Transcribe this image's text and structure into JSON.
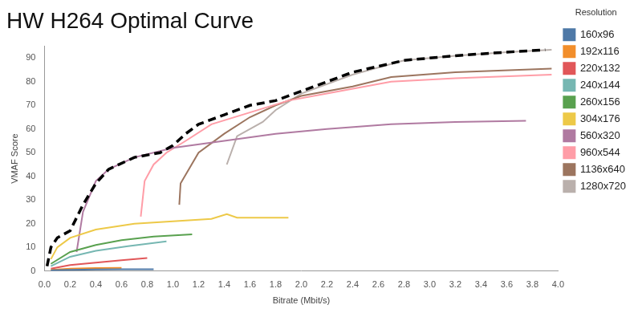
{
  "chart_data": {
    "type": "line",
    "title": "HW H264 Optimal Curve",
    "x_label": "Bitrate (Mbit/s)",
    "y_label": "VMAF Score",
    "legend": "right",
    "legend_title": "Resolution",
    "grid": false,
    "xlim": [
      0,
      4.0
    ],
    "xticks": [
      {
        "value": 0,
        "label": "0.0"
      },
      0.2,
      0.4,
      0.6,
      0.8,
      {
        "value": 1,
        "label": "1.0"
      },
      1.2,
      1.4,
      1.6,
      1.8,
      {
        "value": 2,
        "label": "2.0"
      },
      2.2,
      2.4,
      2.6,
      2.8,
      {
        "value": 3,
        "label": "3.0"
      },
      3.2,
      3.4,
      3.6,
      3.8,
      {
        "value": 4,
        "label": "4.0"
      }
    ],
    "ylim": [
      0,
      95
    ],
    "yticks": [
      0,
      10,
      20,
      30,
      40,
      50,
      60,
      70,
      80,
      90
    ],
    "series": [
      {
        "color": "#000000",
        "line_style": "dashed",
        "x": [
          0.02,
          0.05,
          0.1,
          0.2,
          0.3,
          0.4,
          0.5,
          0.7,
          0.9,
          1.0,
          1.1,
          1.2,
          1.4,
          1.6,
          1.8,
          2.0,
          2.4,
          2.8,
          3.2,
          3.6,
          3.9
        ],
        "values": [
          2,
          10,
          14,
          17,
          28,
          37,
          43,
          48,
          50,
          53,
          58,
          62,
          66,
          70,
          72,
          76,
          84,
          89,
          91,
          92.5,
          93.5
        ]
      },
      {
        "name": "160x96",
        "color": "#4e79a7",
        "x": [
          0.05,
          0.2,
          0.4,
          0.6,
          0.85
        ],
        "values": [
          0.3,
          0.5,
          0.6,
          0.7,
          0.7
        ]
      },
      {
        "name": "192x116",
        "color": "#f28e2b",
        "x": [
          0.05,
          0.2,
          0.4,
          0.6
        ],
        "values": [
          0.5,
          1,
          1.2,
          1.3
        ]
      },
      {
        "name": "220x132",
        "color": "#e15759",
        "x": [
          0.05,
          0.2,
          0.4,
          0.6,
          0.8
        ],
        "values": [
          1,
          2.5,
          3.5,
          4.5,
          5.5
        ]
      },
      {
        "name": "240x144",
        "color": "#76b7b2",
        "x": [
          0.05,
          0.2,
          0.4,
          0.65,
          0.95
        ],
        "values": [
          2,
          6,
          8.5,
          10.5,
          12.5
        ]
      },
      {
        "name": "260x156",
        "color": "#59a14f",
        "x": [
          0.05,
          0.2,
          0.4,
          0.6,
          0.85,
          1.15
        ],
        "values": [
          3,
          8,
          11,
          13,
          14.5,
          15.5
        ]
      },
      {
        "name": "304x176",
        "color": "#edc948",
        "x": [
          0.05,
          0.1,
          0.2,
          0.4,
          0.7,
          1.0,
          1.3,
          1.42,
          1.5,
          1.9
        ],
        "values": [
          5,
          10,
          14,
          17.5,
          20,
          21,
          22,
          24,
          22.5,
          22.5
        ]
      },
      {
        "name": "560x320",
        "color": "#b07aa1",
        "x": [
          0.25,
          0.3,
          0.4,
          0.5,
          0.7,
          1.0,
          1.4,
          1.8,
          2.2,
          2.7,
          3.2,
          3.75
        ],
        "values": [
          8,
          25,
          38,
          43,
          48,
          52,
          55,
          58,
          60,
          62,
          63,
          63.5
        ]
      },
      {
        "name": "960x544",
        "color": "#ff9da7",
        "x": [
          0.75,
          0.78,
          0.85,
          0.95,
          1.1,
          1.3,
          1.6,
          1.9,
          2.2,
          2.7,
          3.2,
          3.95
        ],
        "values": [
          23,
          38,
          45,
          50,
          55,
          62,
          67,
          72,
          75,
          80,
          81.5,
          83
        ]
      },
      {
        "name": "1136x640",
        "color": "#9c755f",
        "x": [
          1.05,
          1.06,
          1.2,
          1.4,
          1.6,
          1.8,
          2.0,
          2.4,
          2.7,
          3.2,
          3.95
        ],
        "values": [
          28,
          37,
          50,
          58,
          65,
          70,
          74,
          78,
          82,
          84,
          85.5
        ]
      },
      {
        "name": "1280x720",
        "color": "#bab0ac",
        "x": [
          1.42,
          1.5,
          1.7,
          1.8,
          2.0,
          2.4,
          2.8,
          3.2,
          3.6,
          3.95
        ],
        "values": [
          45,
          57,
          63,
          68,
          75,
          83,
          89,
          91,
          92.5,
          93.5
        ]
      }
    ]
  }
}
